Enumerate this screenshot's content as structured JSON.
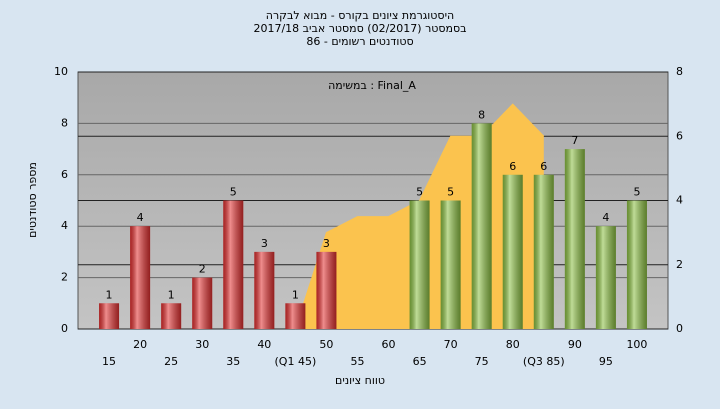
{
  "chart_data": {
    "type": "bar",
    "title_lines": [
      "היסטוגרמת ציונים בקורס - מבוא לבקרה",
      "בסמסטר  (02/2017)  סמסטר אביב 2017/18",
      "סטודנטים רשומים - 86"
    ],
    "annotation": "במשימה : Final_A",
    "xlabel": "טווח ציונים",
    "ylabel": "מספר סטודנטים",
    "categories": [
      "15",
      "20",
      "25",
      "30",
      "35",
      "40",
      "(Q1 45)",
      "50",
      "55",
      "60",
      "65",
      "70",
      "75",
      "80",
      "(Q3 85)",
      "90",
      "95",
      "100"
    ],
    "values": [
      1,
      4,
      1,
      2,
      5,
      3,
      1,
      3,
      null,
      null,
      5,
      5,
      8,
      6,
      6,
      7,
      4,
      5
    ],
    "colors": [
      "#e23030",
      "#e23030",
      "#e23030",
      "#e23030",
      "#e23030",
      "#e23030",
      "#e23030",
      "#e23030",
      "#e23030",
      "#e23030",
      "#8cc043",
      "#8cc043",
      "#8cc043",
      "#8cc043",
      "#8cc043",
      "#8cc043",
      "#8cc043",
      "#8cc043"
    ],
    "area": {
      "axis": "y2",
      "color": "#fbc34e",
      "values": [
        null,
        null,
        null,
        null,
        null,
        null,
        0,
        3,
        3.5,
        3.5,
        4,
        6,
        6,
        7,
        6,
        null,
        null,
        null
      ]
    },
    "ylim": [
      0,
      10
    ],
    "yticks": [
      0,
      2,
      4,
      6,
      8,
      10
    ],
    "y2lim": [
      0,
      8
    ],
    "y2ticks": [
      0,
      2,
      4,
      6,
      8
    ],
    "grid": true
  }
}
